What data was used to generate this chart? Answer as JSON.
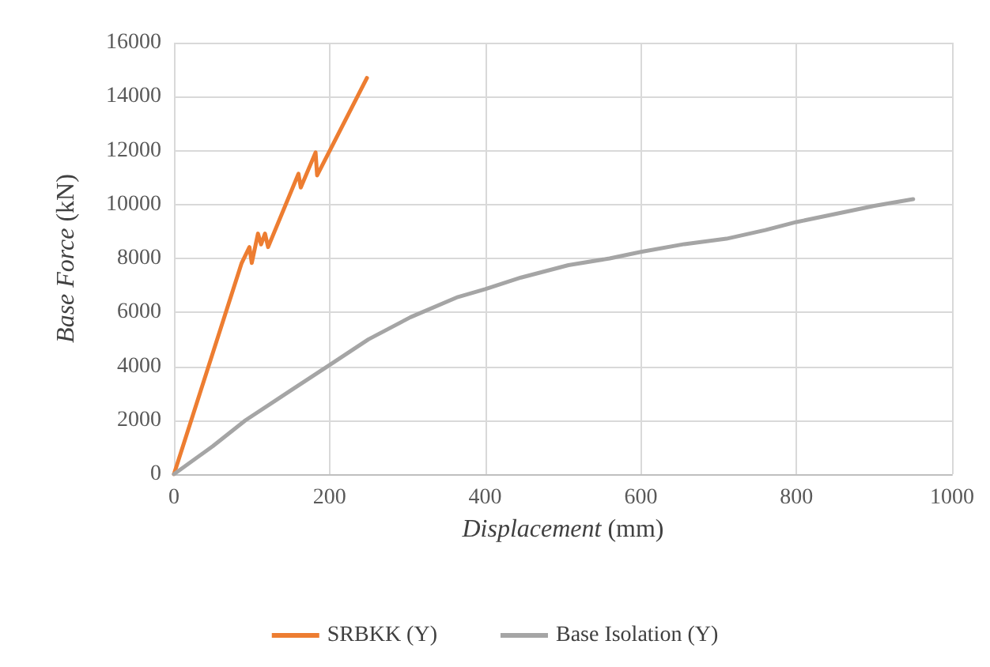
{
  "chart_data": {
    "type": "line",
    "xlabel": "Displacement (mm)",
    "ylabel": "Base Force (kN)",
    "xlim": [
      0,
      1000
    ],
    "xticks": [
      0,
      200,
      400,
      600,
      800,
      1000
    ],
    "ylim": [
      0,
      16000
    ],
    "yticks": [
      0,
      2000,
      4000,
      6000,
      8000,
      10000,
      12000,
      14000,
      16000
    ],
    "grid": true,
    "legend": "bottom",
    "marker": "none",
    "line_style": "solid",
    "series": [
      {
        "name": "SRBKK (Y)",
        "color": "#ed7d31",
        "x": [
          0,
          87,
          97,
          100,
          108,
          112,
          117,
          121,
          160,
          163,
          182,
          184,
          248
        ],
        "values": [
          0,
          7830,
          8420,
          7830,
          8920,
          8520,
          8920,
          8420,
          11140,
          10630,
          11930,
          11080,
          14690
        ]
      },
      {
        "name": "Base Isolation (Y)",
        "color": "#a5a5a5",
        "x": [
          0,
          50,
          92,
          150,
          200,
          250,
          304,
          365,
          400,
          446,
          507,
          560,
          600,
          656,
          710,
          760,
          800,
          850,
          900,
          950
        ],
        "values": [
          0,
          1040,
          2000,
          3100,
          4050,
          5000,
          5820,
          6570,
          6860,
          7290,
          7750,
          8000,
          8240,
          8530,
          8730,
          9050,
          9350,
          9650,
          9950,
          10200
        ]
      }
    ]
  }
}
